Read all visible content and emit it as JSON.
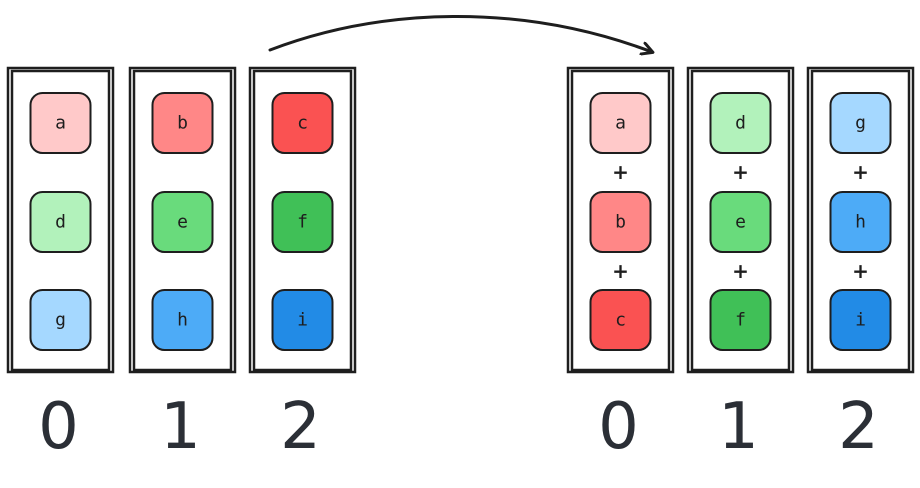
{
  "colors": {
    "a": "#ffc9c9",
    "b": "#ff8787",
    "c": "#fa5252",
    "d": "#b2f2bb",
    "e": "#69db7c",
    "f": "#40c057",
    "g": "#a5d8ff",
    "h": "#4dabf7",
    "i": "#228be6"
  },
  "left_group": {
    "columns": [
      {
        "index": "0",
        "cells": [
          "a",
          "d",
          "g"
        ]
      },
      {
        "index": "1",
        "cells": [
          "b",
          "e",
          "h"
        ]
      },
      {
        "index": "2",
        "cells": [
          "c",
          "f",
          "i"
        ]
      }
    ]
  },
  "right_group": {
    "operator": "+",
    "columns": [
      {
        "index": "0",
        "cells": [
          "a",
          "b",
          "c"
        ]
      },
      {
        "index": "1",
        "cells": [
          "d",
          "e",
          "f"
        ]
      },
      {
        "index": "2",
        "cells": [
          "g",
          "h",
          "i"
        ]
      }
    ]
  }
}
